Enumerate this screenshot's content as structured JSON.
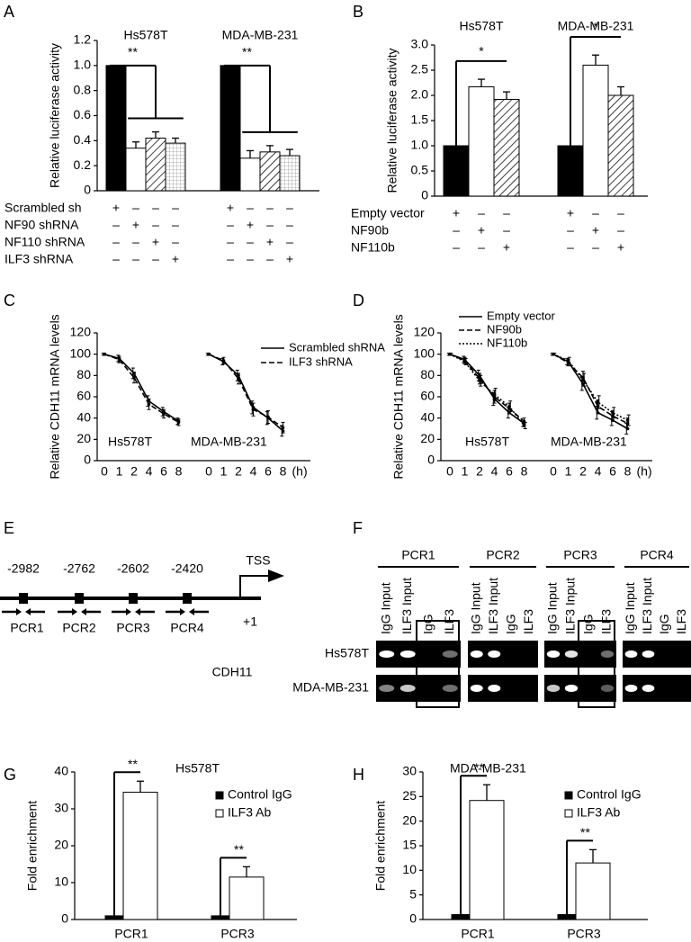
{
  "panel_labels": [
    "A",
    "B",
    "C",
    "D",
    "E",
    "F",
    "G",
    "H"
  ],
  "chart_data": [
    {
      "type": "bar",
      "ylabel": "Relative luciferase activity",
      "ylim": [
        0,
        1.2
      ],
      "yticks": [
        0,
        0.2,
        0.4,
        0.6,
        0.8,
        {
          "value": 1,
          "label": "1.0"
        },
        1.2
      ],
      "bar_fills": [
        "#000000",
        "#ffffff",
        "hatch",
        "grid"
      ],
      "groups": [
        {
          "label": "Hs578T",
          "values": [
            1,
            0.34,
            0.42,
            0.38
          ],
          "errors": [
            null,
            0.05,
            0.05,
            0.04
          ],
          "significance": "**"
        },
        {
          "label": "MDA-MB-231",
          "values": [
            1,
            0.26,
            0.31,
            0.28
          ],
          "errors": [
            null,
            0.06,
            0.05,
            0.05
          ],
          "significance": "**"
        }
      ],
      "conditions": [
        {
          "label": "Scrambled sh",
          "signs": [
            "+",
            "–",
            "–",
            "–",
            "+",
            "–",
            "–",
            "–"
          ]
        },
        {
          "label": "NF90 shRNA",
          "signs": [
            "–",
            "+",
            "–",
            "–",
            "–",
            "+",
            "–",
            "–"
          ]
        },
        {
          "label": "NF110 shRNA",
          "signs": [
            "–",
            "–",
            "+",
            "–",
            "–",
            "–",
            "+",
            "–"
          ]
        },
        {
          "label": "ILF3 shRNA",
          "signs": [
            "–",
            "–",
            "–",
            "+",
            "–",
            "–",
            "–",
            "+"
          ]
        }
      ]
    },
    {
      "type": "bar",
      "ylabel": "Relative luciferase activity",
      "ylim": [
        0,
        3
      ],
      "yticks": [
        0,
        0.5,
        {
          "value": 1,
          "label": "1.0"
        },
        1.5,
        {
          "value": 2,
          "label": "2.0"
        },
        2.5,
        {
          "value": 3,
          "label": "3.0"
        }
      ],
      "bar_fills": [
        "#000000",
        "#ffffff",
        "hatch"
      ],
      "groups": [
        {
          "label": "Hs578T",
          "values": [
            1,
            2.17,
            1.92
          ],
          "errors": [
            null,
            0.15,
            0.15
          ],
          "significance": "*"
        },
        {
          "label": "MDA-MB-231",
          "values": [
            1,
            2.6,
            2.0
          ],
          "errors": [
            null,
            0.2,
            0.17
          ],
          "significance": "*"
        }
      ],
      "conditions": [
        {
          "label": "Empty vector",
          "signs": [
            "+",
            "–",
            "–",
            "+",
            "–",
            "–"
          ]
        },
        {
          "label": "NF90b",
          "signs": [
            "–",
            "+",
            "–",
            "–",
            "+",
            "–"
          ]
        },
        {
          "label": "NF110b",
          "signs": [
            "–",
            "–",
            "+",
            "–",
            "–",
            "+"
          ]
        }
      ]
    },
    {
      "type": "line",
      "ylabel": "Relative CDH11 mRNA levels",
      "ylim": [
        0,
        120
      ],
      "yticks": [
        0,
        20,
        40,
        60,
        80,
        100,
        120
      ],
      "categories": [
        "0",
        "1",
        "2",
        "4",
        "6",
        "8"
      ],
      "x_unit": "(h)",
      "series": [
        {
          "name": "Scrambled shRNA",
          "dash": "solid"
        },
        {
          "name": "ILF3 shRNA",
          "dash": "dashed"
        }
      ],
      "groups": [
        {
          "label": "Hs578T",
          "values": [
            [
              100,
              96,
              82,
              56,
              46,
              37
            ],
            [
              100,
              95,
              78,
              53,
              44,
              36
            ]
          ],
          "errors": [
            [
              1,
              3,
              5,
              5,
              4,
              3
            ],
            [
              1,
              3,
              5,
              5,
              4,
              3
            ]
          ]
        },
        {
          "label": "MDA-MB-231",
          "values": [
            [
              100,
              93,
              80,
              50,
              40,
              28
            ],
            [
              100,
              94,
              77,
              48,
              41,
              31
            ]
          ],
          "errors": [
            [
              1,
              3,
              5,
              6,
              6,
              5
            ],
            [
              1,
              3,
              5,
              6,
              6,
              5
            ]
          ]
        }
      ]
    },
    {
      "type": "line",
      "ylabel": "Relative CDH11 mRNA levels",
      "ylim": [
        0,
        120
      ],
      "yticks": [
        0,
        20,
        40,
        60,
        80,
        100,
        120
      ],
      "categories": [
        "0",
        "1",
        "2",
        "4",
        "6",
        "8"
      ],
      "x_unit": "(h)",
      "series": [
        {
          "name": "Empty vector",
          "dash": "solid"
        },
        {
          "name": "NF90b",
          "dash": "dashed"
        },
        {
          "name": "NF110b",
          "dash": "dotted"
        }
      ],
      "groups": [
        {
          "label": "Hs578T",
          "values": [
            [
              100,
              95,
              80,
              58,
              45,
              35
            ],
            [
              100,
              94,
              77,
              60,
              49,
              37
            ],
            [
              100,
              93,
              75,
              62,
              51,
              33
            ]
          ],
          "errors": [
            [
              1,
              3,
              5,
              6,
              5,
              3
            ],
            [
              1,
              3,
              5,
              6,
              5,
              3
            ],
            [
              1,
              3,
              5,
              6,
              5,
              3
            ]
          ]
        },
        {
          "label": "MDA-MB-231",
          "values": [
            [
              100,
              93,
              72,
              45,
              38,
              30
            ],
            [
              100,
              92,
              78,
              51,
              42,
              35
            ],
            [
              100,
              94,
              76,
              55,
              45,
              38
            ]
          ],
          "errors": [
            [
              1,
              3,
              6,
              6,
              5,
              5
            ],
            [
              1,
              3,
              6,
              6,
              5,
              5
            ],
            [
              1,
              3,
              6,
              6,
              5,
              5
            ]
          ]
        }
      ]
    },
    {
      "type": "bar",
      "title": "Hs578T",
      "ylabel": "Fold enrichment",
      "ylim": [
        0,
        40
      ],
      "yticks": [
        0,
        10,
        20,
        30,
        40
      ],
      "categories": [
        "PCR1",
        "PCR3"
      ],
      "series": [
        {
          "name": "Control IgG",
          "color": "#000000",
          "values": [
            1,
            1
          ]
        },
        {
          "name": "ILF3 Ab",
          "color": "#ffffff",
          "values": [
            34.5,
            11.5
          ],
          "errors": [
            3,
            2.8
          ]
        }
      ],
      "significance": [
        "**",
        "**"
      ]
    },
    {
      "type": "bar",
      "title": "MDA-MB-231",
      "ylabel": "Fold enrichment",
      "ylim": [
        0,
        30
      ],
      "yticks": [
        0,
        5,
        10,
        15,
        20,
        25,
        30
      ],
      "categories": [
        "PCR1",
        "PCR3"
      ],
      "series": [
        {
          "name": "Control IgG",
          "color": "#000000",
          "values": [
            1,
            1
          ]
        },
        {
          "name": "ILF3 Ab",
          "color": "#ffffff",
          "values": [
            24.2,
            11.5
          ],
          "errors": [
            3.2,
            2.7
          ]
        }
      ],
      "significance": [
        "**",
        "**"
      ]
    }
  ],
  "panel_e": {
    "sites": [
      "-2982",
      "-2762",
      "-2602",
      "-2420"
    ],
    "tss": "TSS",
    "tss_position": "+1",
    "primers": [
      "PCR1",
      "PCR2",
      "PCR3",
      "PCR4"
    ],
    "gene": "CDH11"
  },
  "panel_f": {
    "groups": [
      "PCR1",
      "PCR2",
      "PCR3",
      "PCR4"
    ],
    "lanes": [
      "IgG Input",
      "ILF3 Input",
      "IgG",
      "ILF3"
    ],
    "rows": [
      "Hs578T",
      "MDA-MB-231"
    ]
  }
}
